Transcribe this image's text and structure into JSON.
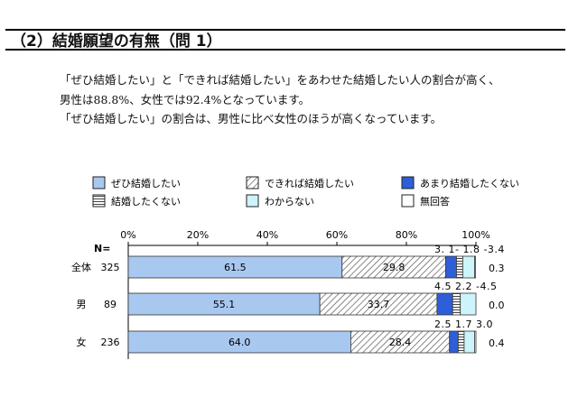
{
  "section": {
    "title": "（2）結婚願望の有無（問 1）"
  },
  "body_text": {
    "p1": "「ぜひ結婚したい」と「できれば結婚したい」をあわせた結婚したい人の割合が高く、",
    "p2": "男性は88.8%、女性では92.4%となっています。",
    "p3": "「ぜひ結婚したい」の割合は、男性に比べ女性のほうが高くなっています。"
  },
  "chart_data": {
    "type": "bar",
    "orientation": "horizontal",
    "stacked": true,
    "n_label": "N=",
    "x_ticks": [
      "0%",
      "20%",
      "40%",
      "60%",
      "80%",
      "100%"
    ],
    "xlim": [
      0,
      100
    ],
    "legend_position": "top",
    "categories": [
      "全体",
      "男",
      "女"
    ],
    "n_values": [
      "325",
      "89",
      "236"
    ],
    "series": [
      {
        "name": "ぜひ結婚したい",
        "values": [
          61.5,
          55.1,
          64.0
        ],
        "labels": [
          "61.5",
          "55.1",
          "64.0"
        ],
        "fill": "#a8c8f0"
      },
      {
        "name": "できれば結婚したい",
        "values": [
          29.8,
          33.7,
          28.4
        ],
        "labels": [
          "29.8",
          "33.7",
          "28.4"
        ],
        "fill": "hatch"
      },
      {
        "name": "あまり結婚したくない",
        "values": [
          3.1,
          4.5,
          2.5
        ],
        "labels": [
          "3.1",
          "4.5",
          "2.5"
        ],
        "fill": "#2e5ed8"
      },
      {
        "name": "結婚したくない",
        "values": [
          1.8,
          2.2,
          1.7
        ],
        "labels": [
          "1.8",
          "2.2",
          "1.7"
        ],
        "fill": "stripe"
      },
      {
        "name": "わからない",
        "values": [
          3.4,
          4.5,
          3.0
        ],
        "labels": [
          "3.4",
          "4.5",
          "3.0"
        ],
        "fill": "#ccf4fa"
      },
      {
        "name": "無回答",
        "values": [
          0.3,
          0.0,
          0.4
        ],
        "labels": [
          "0.3",
          "0.0",
          "0.4"
        ],
        "fill": "#ffffff"
      }
    ],
    "small_value_annotations": [
      [
        "3.",
        "1-",
        "1.8",
        "-3.4"
      ],
      [
        "4.5",
        "2.2",
        "-4.5"
      ],
      [
        "2.5",
        "1.7",
        "3.0"
      ]
    ]
  }
}
